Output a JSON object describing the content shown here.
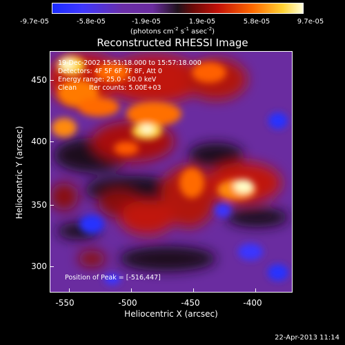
{
  "colorbar": {
    "ticks": [
      "-9.7e-05",
      "-5.8e-05",
      "-1.9e-05",
      "1.9e-05",
      "5.8e-05",
      "9.7e-05"
    ],
    "units_text": "(photons cm",
    "units_exp1": "-2",
    "units_mid": " s",
    "units_exp2": "-1",
    "units_mid2": " asec",
    "units_exp3": "-2",
    "units_end": ")"
  },
  "title": "Reconstructed RHESSI Image",
  "info": {
    "line1": "19-Dec-2002 15:51:18.000 to 15:57:18.000",
    "line2": "Detectors: 4F 5F 6F 7F 8F, Att 0",
    "line3": "Energy range: 25.0 - 50.0 keV",
    "line4": "Clean      Iter counts: 5.00E+03"
  },
  "peak_text": "Position of Peak = [-516,447]",
  "axes": {
    "x_title": "Heliocentric X (arcsec)",
    "y_title": "Heliocentric Y (arcsec)",
    "x_ticks": [
      "-550",
      "-500",
      "-450",
      "-400"
    ],
    "y_ticks": [
      "450",
      "400",
      "350",
      "300"
    ],
    "xlim": [
      -565,
      -370
    ],
    "ylim": [
      280,
      475
    ]
  },
  "timestamp": "22-Apr-2013 11:14"
}
